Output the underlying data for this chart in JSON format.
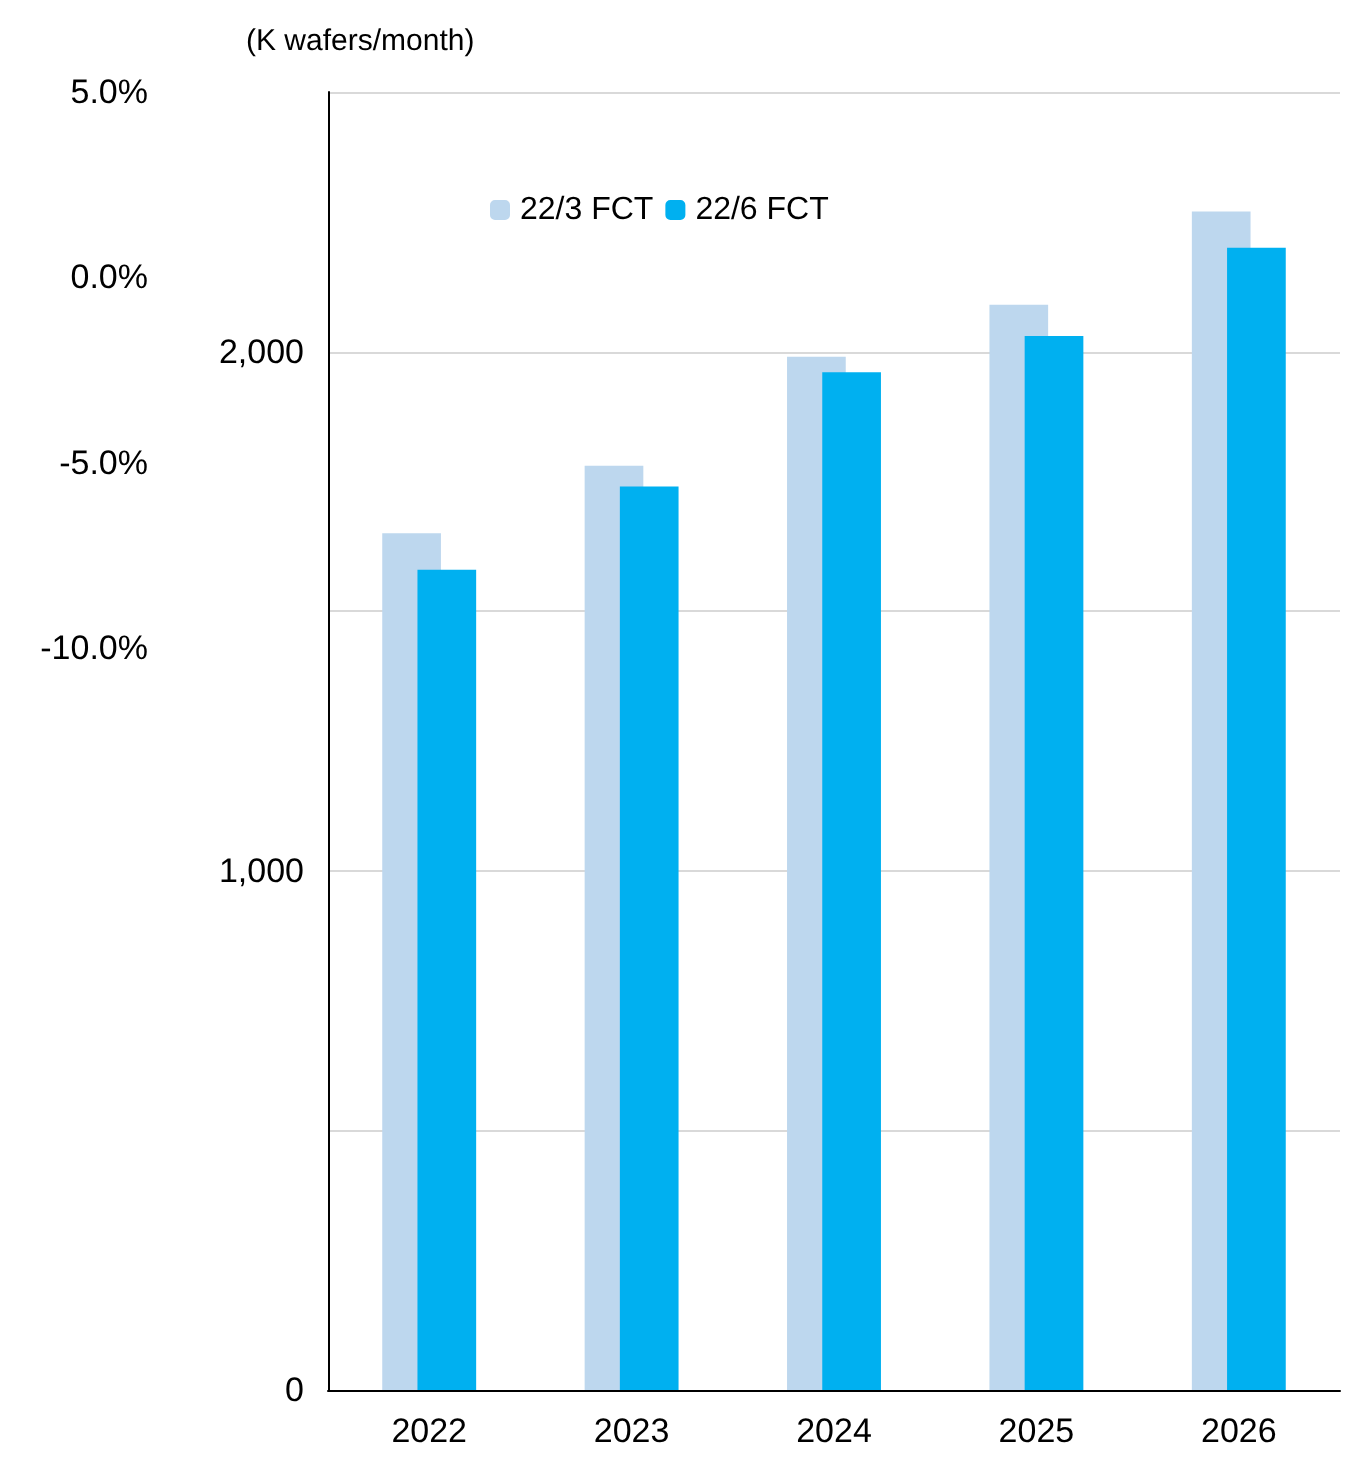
{
  "chart_data": {
    "type": "bar",
    "ylabel": "(K wafers/month)",
    "categories": [
      "2022",
      "2023",
      "2024",
      "2025",
      "2026"
    ],
    "series": [
      {
        "name": "22/3 FCT",
        "color": "#bdd7ee",
        "values": [
          1650,
          1780,
          1990,
          2090,
          2270
        ]
      },
      {
        "name": "22/6 FCT",
        "color": "#00b0f0",
        "values": [
          1580,
          1740,
          1960,
          2030,
          2200
        ]
      }
    ],
    "ylim": [
      0,
      2500
    ],
    "yticks": [
      {
        "value": 0,
        "label": "0"
      },
      {
        "value": 500,
        "label": null
      },
      {
        "value": 1000,
        "label": "1,000"
      },
      {
        "value": 1500,
        "label": null
      },
      {
        "value": 2000,
        "label": "2,000"
      },
      {
        "value": 2500,
        "label": null
      }
    ],
    "y2lim": [
      -30,
      5
    ],
    "y2ticks": [
      {
        "value": -10,
        "label": "-10.0%"
      },
      {
        "value": -5,
        "label": "-5.0%"
      },
      {
        "value": 0,
        "label": "0.0%"
      },
      {
        "value": 5,
        "label": "5.0%"
      }
    ],
    "grid": "y",
    "legend": "top"
  }
}
